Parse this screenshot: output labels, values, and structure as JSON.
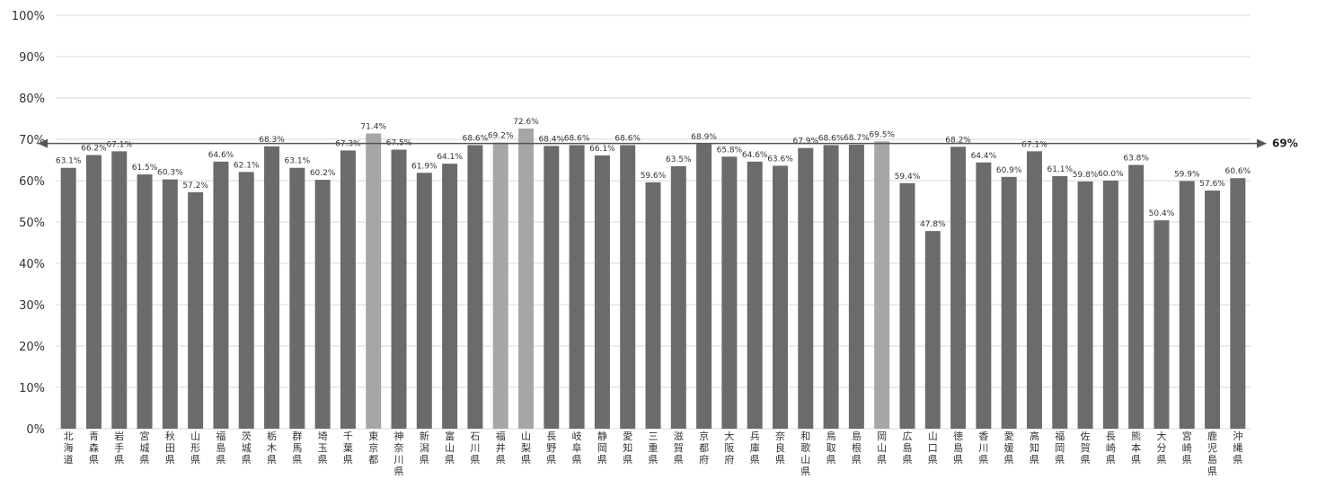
{
  "chart_data": {
    "type": "bar",
    "categories": [
      "北海道",
      "青森県",
      "岩手県",
      "宮城県",
      "秋田県",
      "山形県",
      "福島県",
      "茨城県",
      "栃木県",
      "群馬県",
      "埼玉県",
      "千葉県",
      "東京都",
      "神奈川県",
      "新潟県",
      "富山県",
      "石川県",
      "福井県",
      "山梨県",
      "長野県",
      "岐阜県",
      "静岡県",
      "愛知県",
      "三重県",
      "滋賀県",
      "京都府",
      "大阪府",
      "兵庫県",
      "奈良県",
      "和歌山県",
      "鳥取県",
      "島根県",
      "岡山県",
      "広島県",
      "山口県",
      "徳島県",
      "香川県",
      "愛媛県",
      "高知県",
      "福岡県",
      "佐賀県",
      "長崎県",
      "熊本県",
      "大分県",
      "宮崎県",
      "鹿児島県",
      "沖縄県"
    ],
    "values": [
      63.1,
      66.2,
      67.1,
      61.5,
      60.3,
      57.2,
      64.6,
      62.1,
      68.3,
      63.1,
      60.2,
      67.3,
      71.4,
      67.5,
      61.9,
      64.1,
      68.6,
      69.2,
      72.6,
      68.4,
      68.6,
      66.1,
      68.6,
      59.6,
      63.5,
      68.9,
      65.8,
      64.6,
      63.6,
      67.9,
      68.6,
      68.7,
      69.5,
      59.4,
      47.8,
      68.2,
      64.4,
      60.9,
      67.1,
      61.1,
      59.8,
      60.0,
      63.8,
      50.4,
      59.9,
      57.6,
      60.6
    ],
    "labels": [
      "63.1%",
      "66.2%",
      "67.1%",
      "61.5%",
      "60.3%",
      "57.2%",
      "64.6%",
      "62.1%",
      "68.3%",
      "63.1%",
      "60.2%",
      "67.3%",
      "71.4%",
      "67.5%",
      "61.9%",
      "64.1%",
      "68.6%",
      "69.2%",
      "72.6%",
      "68.4%",
      "68.6%",
      "66.1%",
      "68.6%",
      "59.6%",
      "63.5%",
      "68.9%",
      "65.8%",
      "64.6%",
      "63.6%",
      "67.9%",
      "68.6%",
      "68.7%",
      "69.5%",
      "59.4%",
      "47.8%",
      "68.2%",
      "64.4%",
      "60.9%",
      "67.1%",
      "61.1%",
      "59.8%",
      "60.0%",
      "63.8%",
      "50.4%",
      "59.9%",
      "57.6%",
      "60.6%"
    ],
    "highlighted": [
      "東京都",
      "福井県",
      "山梨県",
      "岡山県"
    ],
    "ylim": [
      0,
      100
    ],
    "yticks": [
      "0%",
      "10%",
      "20%",
      "30%",
      "40%",
      "50%",
      "60%",
      "70%",
      "80%",
      "90%",
      "100%"
    ],
    "reference_line": {
      "value": 69,
      "label": "69%"
    },
    "grid": true,
    "colors": {
      "bar": "#6b6b6b",
      "highlight": "#a6a6a6",
      "grid": "#d9d9d9",
      "ref_line": "#555555"
    }
  }
}
